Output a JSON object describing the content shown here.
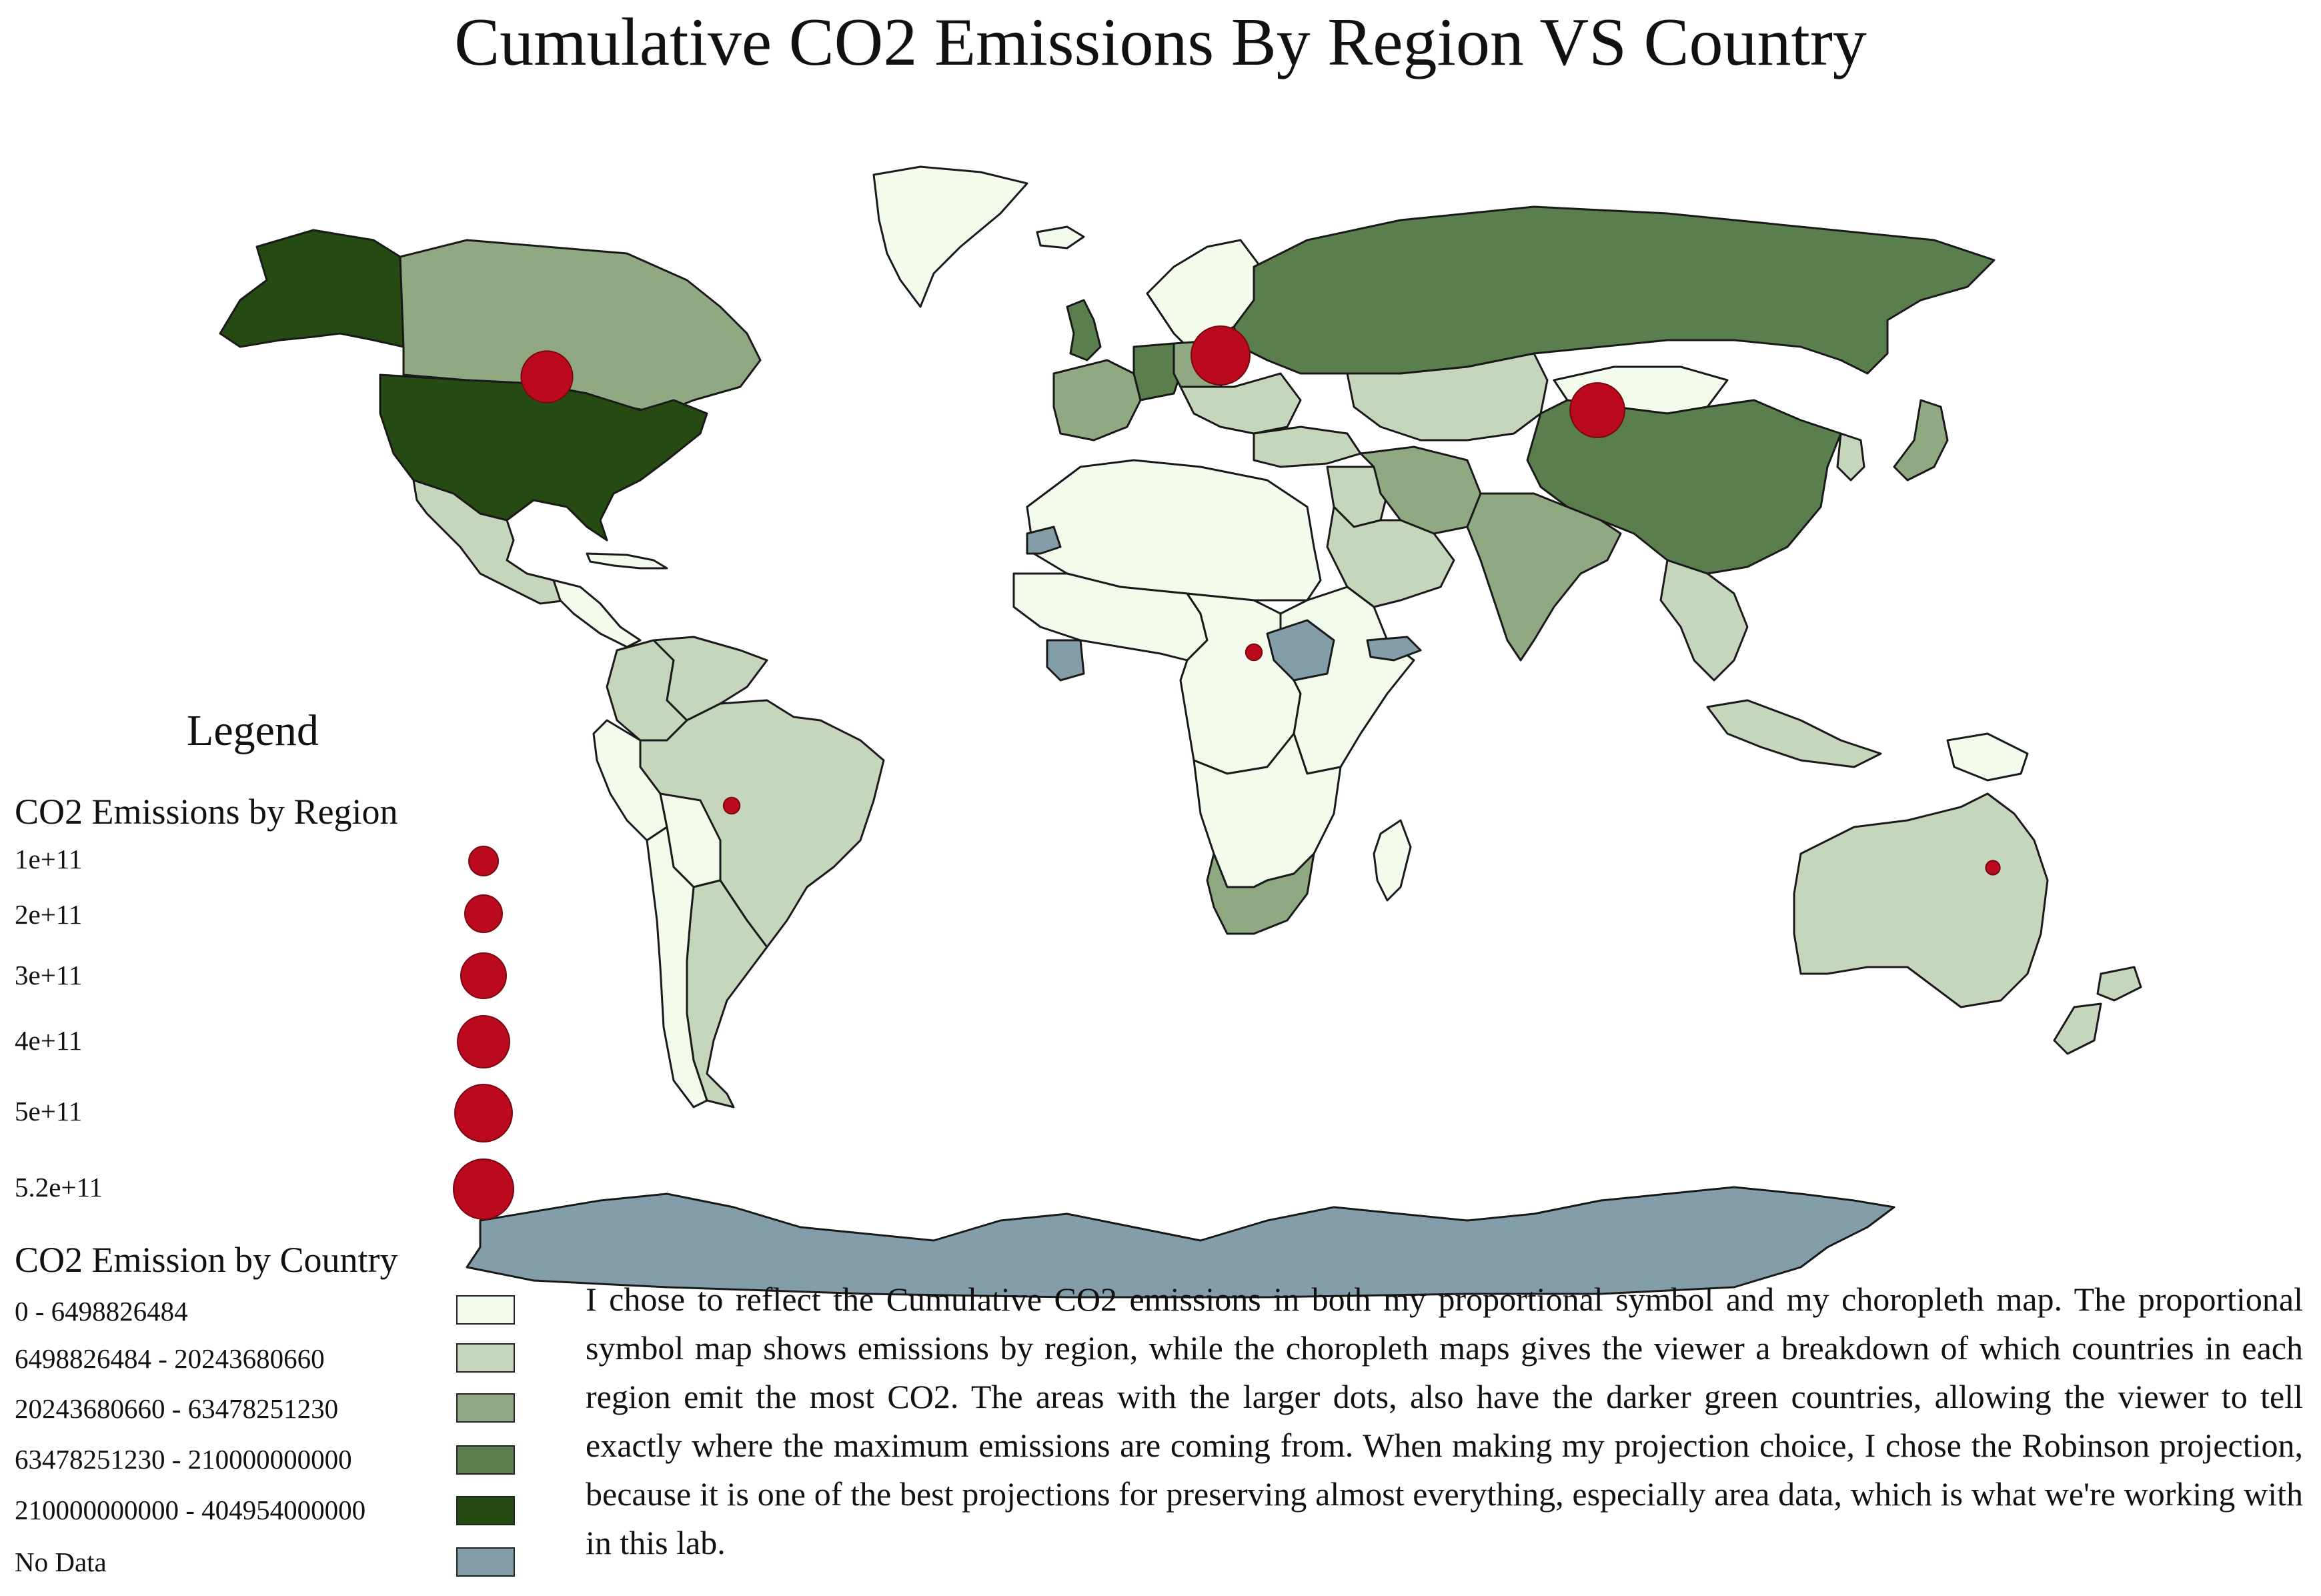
{
  "title": "Cumulative CO2 Emissions By Region VS Country",
  "legend": {
    "title": "Legend",
    "region_heading": "CO2 Emissions by Region",
    "region_sizes": [
      {
        "label": "1e+11",
        "value": 100000000000
      },
      {
        "label": "2e+11",
        "value": 200000000000
      },
      {
        "label": "3e+11",
        "value": 300000000000
      },
      {
        "label": "4e+11",
        "value": 400000000000
      },
      {
        "label": "5e+11",
        "value": 500000000000
      },
      {
        "label": "5.2e+11",
        "value": 520000000000
      }
    ],
    "country_heading": "CO2 Emission by Country",
    "classes": [
      {
        "label": "0 - 6498826484",
        "color": "#f3fcec"
      },
      {
        "label": "6498826484 - 20243680660",
        "color": "#c6d6bc"
      },
      {
        "label": "20243680660 - 63478251230",
        "color": "#90a983"
      },
      {
        "label": "63478251230 - 210000000000",
        "color": "#5b7e4f"
      },
      {
        "label": "210000000000 - 404954000000",
        "color": "#264b12"
      },
      {
        "label": "No Data",
        "color": "#849ea9"
      }
    ]
  },
  "description": "I chose to reflect the Cumulative CO2 emissions in both my proportional symbol and my choropleth map.  The proportional symbol map shows emissions by region,  while the choropleth maps gives the viewer a breakdown of which countries in each region emit the most CO2.  The areas with the larger dots,  also have the darker green countries,  allowing the viewer to tell exactly where the maximum emissions are coming from.  When making my projection choice,  I chose the Robinson projection,  because it is one of the best projections for preserving almost everything,  especially area data,  which is what we're working with in this lab.",
  "colors": {
    "symbol": "#bb0a1e",
    "symbol_stroke": "#7a0712",
    "outline": "#1a1a1a"
  },
  "map": {
    "regions": [
      {
        "name": "Greenland",
        "class": 0
      },
      {
        "name": "Alaska",
        "class": 4
      },
      {
        "name": "Canada",
        "class": 2
      },
      {
        "name": "United States",
        "class": 4
      },
      {
        "name": "Mexico",
        "class": 1
      },
      {
        "name": "Central America",
        "class": 0
      },
      {
        "name": "Caribbean",
        "class": 0
      },
      {
        "name": "Colombia",
        "class": 1
      },
      {
        "name": "Venezuela",
        "class": 1
      },
      {
        "name": "Brazil",
        "class": 1
      },
      {
        "name": "Peru",
        "class": 0
      },
      {
        "name": "Bolivia",
        "class": 0
      },
      {
        "name": "Argentina",
        "class": 1
      },
      {
        "name": "Chile",
        "class": 0
      },
      {
        "name": "Iceland",
        "class": 0
      },
      {
        "name": "Scandinavia",
        "class": 0
      },
      {
        "name": "United Kingdom",
        "class": 3
      },
      {
        "name": "Western Europe",
        "class": 2
      },
      {
        "name": "Germany",
        "class": 3
      },
      {
        "name": "Poland",
        "class": 2
      },
      {
        "name": "Eastern Europe",
        "class": 1
      },
      {
        "name": "Russia",
        "class": 3
      },
      {
        "name": "Kazakhstan",
        "class": 1
      },
      {
        "name": "Mongolia",
        "class": 0
      },
      {
        "name": "China",
        "class": 3
      },
      {
        "name": "Japan",
        "class": 2
      },
      {
        "name": "Korea",
        "class": 1
      },
      {
        "name": "Turkey",
        "class": 1
      },
      {
        "name": "Middle East",
        "class": 1
      },
      {
        "name": "Iran",
        "class": 2
      },
      {
        "name": "Saudi Arabia",
        "class": 1
      },
      {
        "name": "India",
        "class": 2
      },
      {
        "name": "Southeast Asia",
        "class": 1
      },
      {
        "name": "Indonesia",
        "class": 1
      },
      {
        "name": "North Africa",
        "class": 0
      },
      {
        "name": "West Africa",
        "class": 0
      },
      {
        "name": "Central Africa",
        "class": 0
      },
      {
        "name": "East Africa",
        "class": 0
      },
      {
        "name": "Southern Africa",
        "class": 0
      },
      {
        "name": "South Africa",
        "class": 2
      },
      {
        "name": "Madagascar",
        "class": 0
      },
      {
        "name": "Western Sahara",
        "class": 5
      },
      {
        "name": "Ivory Coast",
        "class": 5
      },
      {
        "name": "South Sudan",
        "class": 5
      },
      {
        "name": "Somaliland",
        "class": 5
      },
      {
        "name": "Papua New Guinea",
        "class": 0
      },
      {
        "name": "Australia",
        "class": 1
      },
      {
        "name": "New Zealand",
        "class": 1
      },
      {
        "name": "Antarctica",
        "class": 5
      }
    ],
    "region_symbols": [
      {
        "name": "North America",
        "value": 400000000000
      },
      {
        "name": "Europe",
        "value": 520000000000
      },
      {
        "name": "Asia",
        "value": 450000000000
      },
      {
        "name": "Africa",
        "value": 40000000000
      },
      {
        "name": "South America",
        "value": 40000000000
      },
      {
        "name": "Oceania",
        "value": 30000000000
      }
    ]
  }
}
